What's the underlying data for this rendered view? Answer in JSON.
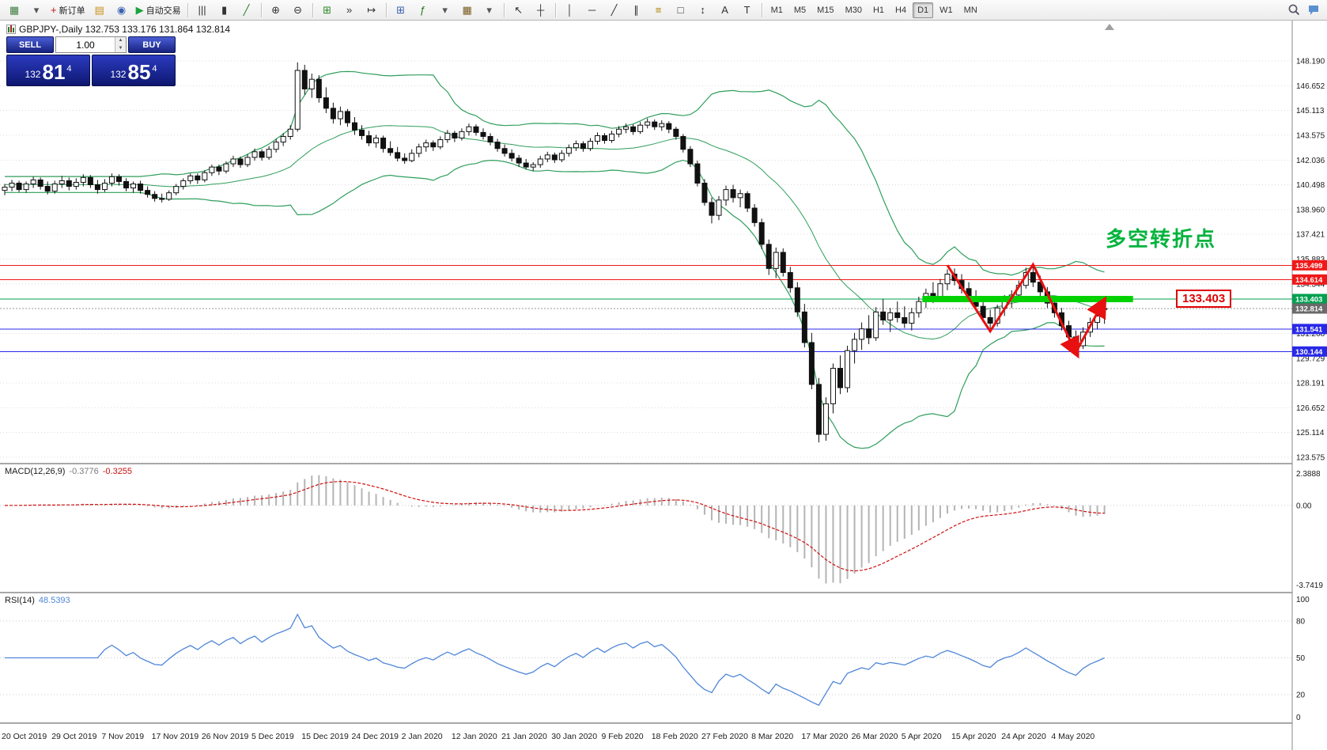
{
  "toolbar": {
    "groups": [
      {
        "items": [
          {
            "name": "new-chart",
            "glyph": "▦",
            "color": "#3f7d3f"
          },
          {
            "name": "new-chart-dropdown",
            "glyph": "▾",
            "color": "#555"
          },
          {
            "name": "new-order",
            "glyph": "+",
            "color": "#c01818",
            "label": "新订单"
          },
          {
            "name": "profiles",
            "glyph": "▤",
            "color": "#c79018"
          },
          {
            "name": "scripts",
            "glyph": "◉",
            "color": "#3a62b0"
          },
          {
            "name": "autotrading",
            "glyph": "▶",
            "color": "#1ba33c",
            "label": "自动交易"
          }
        ]
      },
      {
        "items": [
          {
            "name": "bar-chart",
            "glyph": "|||",
            "color": "#333"
          },
          {
            "name": "candlestick-chart",
            "glyph": "▮",
            "color": "#333"
          },
          {
            "name": "line-chart",
            "glyph": "╱",
            "color": "#2a7a2a"
          }
        ]
      },
      {
        "items": [
          {
            "name": "zoom-in",
            "glyph": "⊕",
            "color": "#333"
          },
          {
            "name": "zoom-out",
            "glyph": "⊖",
            "color": "#333"
          }
        ]
      },
      {
        "items": [
          {
            "name": "grid",
            "glyph": "⊞",
            "color": "#2a8a2a"
          },
          {
            "name": "auto-scroll",
            "glyph": "»",
            "color": "#333"
          },
          {
            "name": "chart-shift",
            "glyph": "↦",
            "color": "#333"
          }
        ]
      },
      {
        "items": [
          {
            "name": "new-window",
            "glyph": "⊞",
            "color": "#3a62b0"
          },
          {
            "name": "indicators",
            "glyph": "ƒ",
            "color": "#1a7a1a"
          },
          {
            "name": "indicators-dropdown",
            "glyph": "▾",
            "color": "#555"
          },
          {
            "name": "templates",
            "glyph": "▦",
            "color": "#7a5a20"
          },
          {
            "name": "templates-dropdown",
            "glyph": "▾",
            "color": "#555"
          }
        ]
      },
      {
        "items": [
          {
            "name": "cursor",
            "glyph": "↖",
            "color": "#333"
          },
          {
            "name": "crosshair",
            "glyph": "┼",
            "color": "#333"
          }
        ]
      },
      {
        "items": [
          {
            "name": "vertical-line",
            "glyph": "│",
            "color": "#333"
          },
          {
            "name": "horizontal-line",
            "glyph": "─",
            "color": "#333"
          },
          {
            "name": "trendline",
            "glyph": "╱",
            "color": "#333"
          },
          {
            "name": "equidistant-channel",
            "glyph": "∥",
            "color": "#333"
          },
          {
            "name": "fibonacci",
            "glyph": "≡",
            "color": "#b08000"
          },
          {
            "name": "shapes",
            "glyph": "□",
            "color": "#333"
          },
          {
            "name": "arrows",
            "glyph": "↕",
            "color": "#333"
          },
          {
            "name": "text",
            "glyph": "A",
            "color": "#333"
          },
          {
            "name": "text-label",
            "glyph": "T",
            "color": "#333"
          }
        ]
      }
    ],
    "timeframes": {
      "options": [
        "M1",
        "M5",
        "M15",
        "M30",
        "H1",
        "H4",
        "D1",
        "W1",
        "MN"
      ],
      "active": "D1"
    }
  },
  "chart": {
    "symbol_label": "GBPJPY-,Daily 132.753 133.176 131.864 132.814"
  },
  "trade": {
    "sell_label": "SELL",
    "buy_label": "BUY",
    "volume": "1.00",
    "sell": {
      "small": "132",
      "big": "81",
      "sup": "4"
    },
    "buy": {
      "small": "132",
      "big": "85",
      "sup": "4"
    }
  },
  "annotation": {
    "text": "多空转折点",
    "color": "#00b33c"
  },
  "price_tag": {
    "text": "133.403"
  },
  "macd": {
    "name": "MACD(12,26,9)",
    "value1": "-0.3776",
    "value2": "-0.3255",
    "axis": [
      "2.3888",
      "0.00",
      "-3.7419"
    ]
  },
  "rsi": {
    "name": "RSI(14)",
    "value": "48.5393",
    "axis_labels": [
      "100",
      "80",
      "50",
      "20",
      "0"
    ],
    "levels": [
      80,
      50,
      20
    ]
  },
  "chart_data": {
    "type": "candlestick",
    "symbol": "GBPJPY-",
    "period": "Daily",
    "ohlc_last": {
      "open": 132.753,
      "high": 133.176,
      "low": 131.864,
      "close": 132.814
    },
    "y_axis_labels": [
      "148.190",
      "146.652",
      "145.113",
      "143.575",
      "142.036",
      "140.498",
      "138.960",
      "137.421",
      "135.883",
      "134.344",
      "132.806",
      "131.268",
      "129.729",
      "128.191",
      "126.652",
      "125.114",
      "123.575"
    ],
    "x_labels": [
      "20 Oct 2019",
      "29 Oct 2019",
      "7 Nov 2019",
      "17 Nov 2019",
      "26 Nov 2019",
      "5 Dec 2019",
      "15 Dec 2019",
      "24 Dec 2019",
      "2 Jan 2020",
      "12 Jan 2020",
      "21 Jan 2020",
      "30 Jan 2020",
      "9 Feb 2020",
      "18 Feb 2020",
      "27 Feb 2020",
      "8 Mar 2020",
      "17 Mar 2020",
      "26 Mar 2020",
      "5 Apr 2020",
      "15 Apr 2020",
      "24 Apr 2020",
      "4 May 2020"
    ],
    "bars_per_label": 7,
    "hlines": [
      {
        "price": 135.499,
        "color": "#f01818",
        "label": "135.499"
      },
      {
        "price": 134.614,
        "color": "#f01818",
        "label": "134.614"
      },
      {
        "price": 133.403,
        "color": "#00a050",
        "label": "133.403"
      },
      {
        "price": 131.541,
        "color": "#2828e8",
        "label": "131.541"
      },
      {
        "price": 130.144,
        "color": "#2828e8",
        "label": "130.144"
      }
    ],
    "current_price": {
      "value": 132.814,
      "label": "132.814",
      "color": "#6a6a6a"
    },
    "overlays": {
      "bollinger": {
        "period": 20,
        "deviation": 2,
        "color": "#2e9e5b"
      },
      "thick_level": {
        "price": 133.403,
        "from_bar": 128.5,
        "to_bar": 158,
        "color": "#00d200",
        "width": 8
      },
      "zigzag": {
        "color": "#e81010",
        "points": [
          [
            132,
            135.5
          ],
          [
            138,
            131.4
          ],
          [
            144,
            135.55
          ],
          [
            150,
            130.1
          ],
          [
            153.8,
            133.2
          ]
        ]
      }
    },
    "candles": [
      [
        140.15,
        140.55,
        139.85,
        140.35
      ],
      [
        140.35,
        140.8,
        140.1,
        140.6
      ],
      [
        140.6,
        140.75,
        140.05,
        140.2
      ],
      [
        140.2,
        140.7,
        140.0,
        140.55
      ],
      [
        140.55,
        141.0,
        140.3,
        140.8
      ],
      [
        140.8,
        140.95,
        140.2,
        140.4
      ],
      [
        140.4,
        140.7,
        139.9,
        140.1
      ],
      [
        140.1,
        140.75,
        139.95,
        140.55
      ],
      [
        140.55,
        141.05,
        140.3,
        140.75
      ],
      [
        140.75,
        140.95,
        140.15,
        140.4
      ],
      [
        140.4,
        140.9,
        140.2,
        140.65
      ],
      [
        140.65,
        141.15,
        140.4,
        140.95
      ],
      [
        140.95,
        141.1,
        140.3,
        140.5
      ],
      [
        140.5,
        140.8,
        139.95,
        140.2
      ],
      [
        140.2,
        140.85,
        140.05,
        140.6
      ],
      [
        140.6,
        141.2,
        140.4,
        141.0
      ],
      [
        141.0,
        141.15,
        140.45,
        140.7
      ],
      [
        140.7,
        140.9,
        140.1,
        140.3
      ],
      [
        140.3,
        140.7,
        140.0,
        140.55
      ],
      [
        140.55,
        140.75,
        139.95,
        140.15
      ],
      [
        140.15,
        140.4,
        139.7,
        139.9
      ],
      [
        139.9,
        140.1,
        139.45,
        139.65
      ],
      [
        139.65,
        139.95,
        139.4,
        139.6
      ],
      [
        139.6,
        140.15,
        139.5,
        140.0
      ],
      [
        140.0,
        140.55,
        139.85,
        140.4
      ],
      [
        140.4,
        140.9,
        140.2,
        140.75
      ],
      [
        140.75,
        141.2,
        140.55,
        141.05
      ],
      [
        141.05,
        141.2,
        140.55,
        140.8
      ],
      [
        140.8,
        141.4,
        140.65,
        141.25
      ],
      [
        141.25,
        141.75,
        141.05,
        141.6
      ],
      [
        141.6,
        141.75,
        141.1,
        141.35
      ],
      [
        141.35,
        141.95,
        141.2,
        141.8
      ],
      [
        141.8,
        142.3,
        141.6,
        142.1
      ],
      [
        142.1,
        142.25,
        141.55,
        141.75
      ],
      [
        141.75,
        142.4,
        141.6,
        142.2
      ],
      [
        142.2,
        142.75,
        142.0,
        142.55
      ],
      [
        142.55,
        142.7,
        142.0,
        142.2
      ],
      [
        142.2,
        142.9,
        142.05,
        142.7
      ],
      [
        142.7,
        143.35,
        142.5,
        143.15
      ],
      [
        143.15,
        143.7,
        142.9,
        143.5
      ],
      [
        143.5,
        144.2,
        143.3,
        143.95
      ],
      [
        143.95,
        148.1,
        143.8,
        147.6
      ],
      [
        147.6,
        147.95,
        146.1,
        146.45
      ],
      [
        146.45,
        147.4,
        145.9,
        147.05
      ],
      [
        147.05,
        147.3,
        145.6,
        145.9
      ],
      [
        145.9,
        146.55,
        144.95,
        145.25
      ],
      [
        145.25,
        145.6,
        144.3,
        144.6
      ],
      [
        144.6,
        145.35,
        144.2,
        145.05
      ],
      [
        145.05,
        145.2,
        144.1,
        144.35
      ],
      [
        144.35,
        144.7,
        143.6,
        143.9
      ],
      [
        143.9,
        144.2,
        143.3,
        143.55
      ],
      [
        143.55,
        143.85,
        142.9,
        143.1
      ],
      [
        143.1,
        143.6,
        142.8,
        143.4
      ],
      [
        143.4,
        143.55,
        142.5,
        142.75
      ],
      [
        142.75,
        143.2,
        142.3,
        142.5
      ],
      [
        142.5,
        142.85,
        141.95,
        142.15
      ],
      [
        142.15,
        142.45,
        141.8,
        142.0
      ],
      [
        142.0,
        142.7,
        141.9,
        142.45
      ],
      [
        142.45,
        143.05,
        142.2,
        142.85
      ],
      [
        142.85,
        143.3,
        142.55,
        143.1
      ],
      [
        143.1,
        143.25,
        142.6,
        142.85
      ],
      [
        142.85,
        143.5,
        142.7,
        143.3
      ],
      [
        143.3,
        143.9,
        143.1,
        143.7
      ],
      [
        143.7,
        143.85,
        143.15,
        143.4
      ],
      [
        143.4,
        144.0,
        143.25,
        143.8
      ],
      [
        143.8,
        144.3,
        143.55,
        144.1
      ],
      [
        144.1,
        144.25,
        143.55,
        143.75
      ],
      [
        143.75,
        144.0,
        143.3,
        143.5
      ],
      [
        143.5,
        143.7,
        142.95,
        143.15
      ],
      [
        143.15,
        143.35,
        142.55,
        142.75
      ],
      [
        142.75,
        143.0,
        142.25,
        142.45
      ],
      [
        142.45,
        142.7,
        141.95,
        142.15
      ],
      [
        142.15,
        142.35,
        141.6,
        141.85
      ],
      [
        141.85,
        142.1,
        141.45,
        141.6
      ],
      [
        141.6,
        141.9,
        141.35,
        141.75
      ],
      [
        141.75,
        142.3,
        141.55,
        142.1
      ],
      [
        142.1,
        142.55,
        141.9,
        142.35
      ],
      [
        142.35,
        142.5,
        141.85,
        142.05
      ],
      [
        142.05,
        142.65,
        141.9,
        142.45
      ],
      [
        142.45,
        143.0,
        142.25,
        142.8
      ],
      [
        142.8,
        143.25,
        142.6,
        143.05
      ],
      [
        143.05,
        143.2,
        142.55,
        142.75
      ],
      [
        142.75,
        143.4,
        142.6,
        143.2
      ],
      [
        143.2,
        143.75,
        143.0,
        143.55
      ],
      [
        143.55,
        143.7,
        143.05,
        143.25
      ],
      [
        143.25,
        143.85,
        143.1,
        143.65
      ],
      [
        143.65,
        144.15,
        143.45,
        143.95
      ],
      [
        143.95,
        144.3,
        143.7,
        144.1
      ],
      [
        144.1,
        144.25,
        143.6,
        143.8
      ],
      [
        143.8,
        144.4,
        143.65,
        144.2
      ],
      [
        144.2,
        144.62,
        144.0,
        144.4
      ],
      [
        144.4,
        144.55,
        143.9,
        144.1
      ],
      [
        144.1,
        144.5,
        143.85,
        144.3
      ],
      [
        144.3,
        144.45,
        143.7,
        143.95
      ],
      [
        143.95,
        144.1,
        143.3,
        143.5
      ],
      [
        143.5,
        143.65,
        142.5,
        142.7
      ],
      [
        142.7,
        142.9,
        141.6,
        141.8
      ],
      [
        141.8,
        142.0,
        140.4,
        140.6
      ],
      [
        140.6,
        140.85,
        139.2,
        139.4
      ],
      [
        139.4,
        139.7,
        138.1,
        138.6
      ],
      [
        138.6,
        139.8,
        138.3,
        139.55
      ],
      [
        139.55,
        140.45,
        139.2,
        140.2
      ],
      [
        140.2,
        140.5,
        139.4,
        139.7
      ],
      [
        139.7,
        140.2,
        139.1,
        139.95
      ],
      [
        139.95,
        140.1,
        138.8,
        139.05
      ],
      [
        139.05,
        139.3,
        137.9,
        138.15
      ],
      [
        138.15,
        138.4,
        136.5,
        136.8
      ],
      [
        136.8,
        137.1,
        134.9,
        135.3
      ],
      [
        135.3,
        136.6,
        134.7,
        136.3
      ],
      [
        136.3,
        136.55,
        134.8,
        135.05
      ],
      [
        135.05,
        135.4,
        133.8,
        134.1
      ],
      [
        134.1,
        134.45,
        132.3,
        132.6
      ],
      [
        132.6,
        133.1,
        130.4,
        130.7
      ],
      [
        130.7,
        131.3,
        127.8,
        128.1
      ],
      [
        128.1,
        128.5,
        124.5,
        125.0
      ],
      [
        125.0,
        127.3,
        124.6,
        126.9
      ],
      [
        126.9,
        129.4,
        126.3,
        129.1
      ],
      [
        129.1,
        129.9,
        127.5,
        127.9
      ],
      [
        127.9,
        130.5,
        127.6,
        130.2
      ],
      [
        130.2,
        131.3,
        129.4,
        130.9
      ],
      [
        130.9,
        131.95,
        130.25,
        131.55
      ],
      [
        131.55,
        132.4,
        130.6,
        131.0
      ],
      [
        131.0,
        132.9,
        130.8,
        132.6
      ],
      [
        132.6,
        133.4,
        131.8,
        132.1
      ],
      [
        132.1,
        132.85,
        131.35,
        132.55
      ],
      [
        132.55,
        133.25,
        131.95,
        132.25
      ],
      [
        132.25,
        132.95,
        131.6,
        131.9
      ],
      [
        131.9,
        132.85,
        131.45,
        132.55
      ],
      [
        132.55,
        133.55,
        132.25,
        133.25
      ],
      [
        133.25,
        134.05,
        132.85,
        133.75
      ],
      [
        133.75,
        134.45,
        133.15,
        133.45
      ],
      [
        133.45,
        134.65,
        133.25,
        134.35
      ],
      [
        134.35,
        135.25,
        133.95,
        134.95
      ],
      [
        134.95,
        135.3,
        134.25,
        134.55
      ],
      [
        134.55,
        134.95,
        133.75,
        134.05
      ],
      [
        134.05,
        134.45,
        133.25,
        133.55
      ],
      [
        133.55,
        133.95,
        132.65,
        132.95
      ],
      [
        132.95,
        133.35,
        131.95,
        132.25
      ],
      [
        132.25,
        132.75,
        131.55,
        131.9
      ],
      [
        131.9,
        133.05,
        131.7,
        132.85
      ],
      [
        132.85,
        133.65,
        132.35,
        133.35
      ],
      [
        133.35,
        133.95,
        132.85,
        133.65
      ],
      [
        133.65,
        134.55,
        133.35,
        134.25
      ],
      [
        134.25,
        135.35,
        134.05,
        135.05
      ],
      [
        135.05,
        135.5,
        134.15,
        134.45
      ],
      [
        134.45,
        134.85,
        133.55,
        133.85
      ],
      [
        133.85,
        134.15,
        132.85,
        133.15
      ],
      [
        133.15,
        133.55,
        132.25,
        132.55
      ],
      [
        132.55,
        132.85,
        131.45,
        131.75
      ],
      [
        131.75,
        132.05,
        130.75,
        131.05
      ],
      [
        131.05,
        131.45,
        130.1,
        130.5
      ],
      [
        130.5,
        131.65,
        130.3,
        131.35
      ],
      [
        131.35,
        132.25,
        131.05,
        131.95
      ],
      [
        131.95,
        132.55,
        131.55,
        132.35
      ],
      [
        132.753,
        133.176,
        131.864,
        132.814
      ]
    ]
  }
}
